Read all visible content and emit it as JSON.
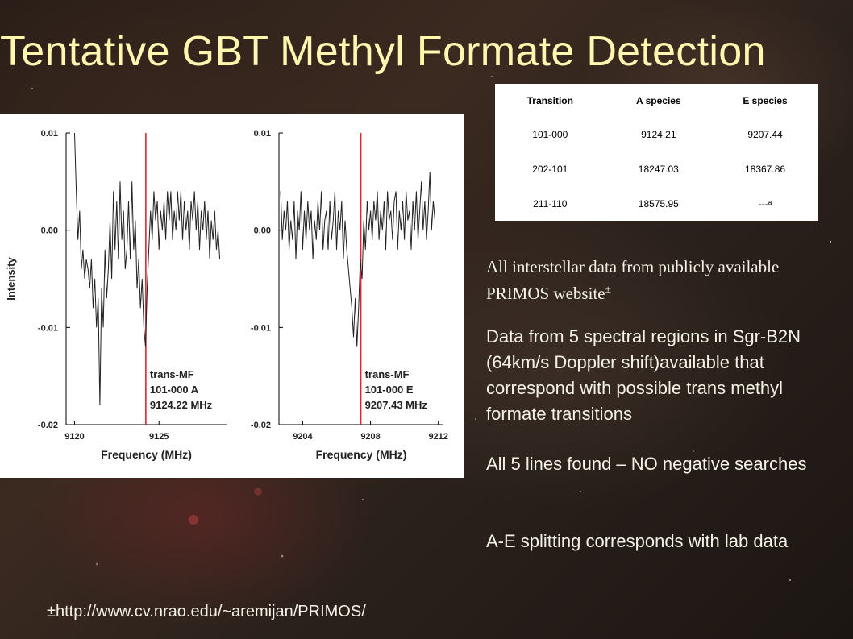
{
  "title": "Tentative GBT Methyl Formate Detection",
  "table": {
    "headers": [
      "Transition",
      "A species",
      "E species"
    ],
    "rows": [
      [
        "101-000",
        "9124.21",
        "9207.44"
      ],
      [
        "202-101",
        "18247.03",
        "18367.86"
      ],
      [
        "211-110",
        "18575.95",
        "---ᵃ"
      ]
    ]
  },
  "note": {
    "text": "All interstellar data from publicly available PRIMOS website",
    "mark": "±"
  },
  "bullets": [
    " Data from 5 spectral regions in Sgr-B2N (64km/s Doppler shift)available that correspond with possible trans methyl formate transitions",
    "All 5 lines found – NO negative searches",
    "A-E splitting corresponds with lab data"
  ],
  "footnote": "±http://www.cv.nrao.edu/~aremijan/PRIMOS/",
  "colors": {
    "title": "#fff7b0",
    "marker_line": "#e8202a",
    "trace": "#222222"
  },
  "chart_data": [
    {
      "type": "line",
      "xlabel": "Frequency (MHz)",
      "ylabel": "Intensity",
      "xlim": [
        9119.5,
        9129
      ],
      "ylim": [
        -0.02,
        0.01
      ],
      "xticks": [
        9120,
        9125
      ],
      "xtick_labels": [
        "9120",
        "9125"
      ],
      "yticks": [
        0.01,
        0.0,
        -0.01,
        -0.02
      ],
      "ytick_labels": [
        "0.01",
        "0.00",
        "-0.01",
        "-0.02"
      ],
      "marker_x": 9124.22,
      "annotation": [
        "trans-MF",
        "101-000 A",
        "9124.22 MHz"
      ],
      "x": [
        9120.0,
        9120.1,
        9120.2,
        9120.3,
        9120.4,
        9120.5,
        9120.6,
        9120.7,
        9120.8,
        9120.9,
        9121.0,
        9121.1,
        9121.2,
        9121.3,
        9121.4,
        9121.5,
        9121.6,
        9121.7,
        9121.8,
        9121.9,
        9122.0,
        9122.1,
        9122.2,
        9122.3,
        9122.4,
        9122.5,
        9122.6,
        9122.7,
        9122.8,
        9122.9,
        9123.0,
        9123.1,
        9123.2,
        9123.3,
        9123.4,
        9123.5,
        9123.6,
        9123.7,
        9123.8,
        9123.9,
        9124.0,
        9124.1,
        9124.2,
        9124.3,
        9124.4,
        9124.5,
        9124.6,
        9124.7,
        9124.8,
        9124.9,
        9125.0,
        9125.1,
        9125.2,
        9125.3,
        9125.4,
        9125.5,
        9125.6,
        9125.7,
        9125.8,
        9125.9,
        9126.0,
        9126.1,
        9126.2,
        9126.3,
        9126.4,
        9126.5,
        9126.6,
        9126.7,
        9126.8,
        9126.9,
        9127.0,
        9127.1,
        9127.2,
        9127.3,
        9127.4,
        9127.5,
        9127.6,
        9127.7,
        9127.8,
        9127.9,
        9128.0,
        9128.1,
        9128.2,
        9128.3,
        9128.4,
        9128.5,
        9128.6
      ],
      "y": [
        0.01,
        0.004,
        -0.001,
        0.002,
        -0.004,
        -0.002,
        -0.005,
        -0.003,
        -0.004,
        -0.006,
        -0.003,
        -0.008,
        -0.005,
        -0.01,
        -0.007,
        -0.018,
        -0.006,
        -0.01,
        -0.002,
        -0.007,
        -0.004,
        0.001,
        -0.005,
        0.004,
        -0.002,
        0.003,
        -0.003,
        0.005,
        -0.001,
        0.002,
        -0.004,
        -0.002,
        0.003,
        -0.003,
        0.005,
        -0.002,
        0.001,
        -0.006,
        -0.003,
        -0.008,
        -0.005,
        -0.01,
        -0.012,
        -0.006,
        -0.002,
        0.002,
        -0.001,
        0.004,
        0.001,
        0.003,
        -0.002,
        0.002,
        0.0,
        0.003,
        -0.001,
        0.004,
        0.001,
        0.004,
        -0.001,
        0.002,
        0.0,
        0.004,
        0.001,
        0.004,
        -0.001,
        0.003,
        0.0,
        0.002,
        -0.002,
        0.003,
        0.001,
        0.004,
        0.0,
        0.003,
        -0.002,
        0.002,
        0.0,
        0.003,
        -0.001,
        0.002,
        -0.003,
        0.001,
        -0.001,
        0.002,
        -0.002,
        0.0,
        -0.003
      ]
    },
    {
      "type": "line",
      "xlabel": "Frequency (MHz)",
      "ylabel": "",
      "xlim": [
        9202.6,
        9212.3
      ],
      "ylim": [
        -0.02,
        0.01
      ],
      "xticks": [
        9204,
        9208,
        9212
      ],
      "xtick_labels": [
        "9204",
        "9208",
        "9212"
      ],
      "yticks": [
        0.01,
        0.0,
        -0.01,
        -0.02
      ],
      "ytick_labels": [
        "0.01",
        "0.00",
        "-0.01",
        "-0.02"
      ],
      "marker_x": 9207.43,
      "annotation": [
        "trans-MF",
        "101-000 E",
        "9207.43 MHz"
      ],
      "x": [
        9202.7,
        9202.8,
        9202.9,
        9203.0,
        9203.1,
        9203.2,
        9203.3,
        9203.4,
        9203.5,
        9203.6,
        9203.7,
        9203.8,
        9203.9,
        9204.0,
        9204.1,
        9204.2,
        9204.3,
        9204.4,
        9204.5,
        9204.6,
        9204.7,
        9204.8,
        9204.9,
        9205.0,
        9205.1,
        9205.2,
        9205.3,
        9205.4,
        9205.5,
        9205.6,
        9205.7,
        9205.8,
        9205.9,
        9206.0,
        9206.1,
        9206.2,
        9206.3,
        9206.4,
        9206.5,
        9206.6,
        9206.7,
        9206.8,
        9206.9,
        9207.0,
        9207.1,
        9207.2,
        9207.3,
        9207.4,
        9207.5,
        9207.6,
        9207.7,
        9207.8,
        9207.9,
        9208.0,
        9208.1,
        9208.2,
        9208.3,
        9208.4,
        9208.5,
        9208.6,
        9208.7,
        9208.8,
        9208.9,
        9209.0,
        9209.1,
        9209.2,
        9209.3,
        9209.4,
        9209.5,
        9209.6,
        9209.7,
        9209.8,
        9209.9,
        9210.0,
        9210.1,
        9210.2,
        9210.3,
        9210.4,
        9210.5,
        9210.6,
        9210.7,
        9210.8,
        9210.9,
        9211.0,
        9211.1,
        9211.2,
        9211.3,
        9211.4,
        9211.5,
        9211.6,
        9211.7,
        9211.8
      ],
      "y": [
        0.004,
        -0.001,
        0.002,
        0.0,
        0.003,
        -0.002,
        0.001,
        -0.001,
        0.003,
        -0.003,
        0.002,
        0.0,
        0.004,
        -0.002,
        0.002,
        -0.001,
        0.003,
        0.0,
        0.002,
        -0.003,
        0.001,
        -0.001,
        0.003,
        0.0,
        0.004,
        -0.002,
        0.001,
        0.002,
        -0.002,
        0.003,
        -0.001,
        0.001,
        0.004,
        -0.002,
        0.002,
        0.0,
        0.003,
        -0.003,
        0.001,
        -0.002,
        -0.004,
        -0.006,
        -0.008,
        -0.011,
        -0.007,
        -0.012,
        -0.008,
        -0.003,
        -0.005,
        0.001,
        -0.002,
        0.003,
        0.0,
        0.002,
        -0.001,
        0.003,
        0.001,
        0.004,
        -0.001,
        0.002,
        0.0,
        0.003,
        -0.002,
        0.004,
        0.001,
        0.002,
        -0.001,
        0.003,
        0.004,
        -0.002,
        0.002,
        0.0,
        0.003,
        -0.001,
        0.004,
        0.001,
        0.002,
        -0.002,
        0.003,
        0.0,
        0.004,
        -0.001,
        0.002,
        0.005,
        0.0,
        0.003,
        -0.001,
        0.002,
        0.006,
        0.0,
        0.003,
        0.001
      ]
    }
  ]
}
